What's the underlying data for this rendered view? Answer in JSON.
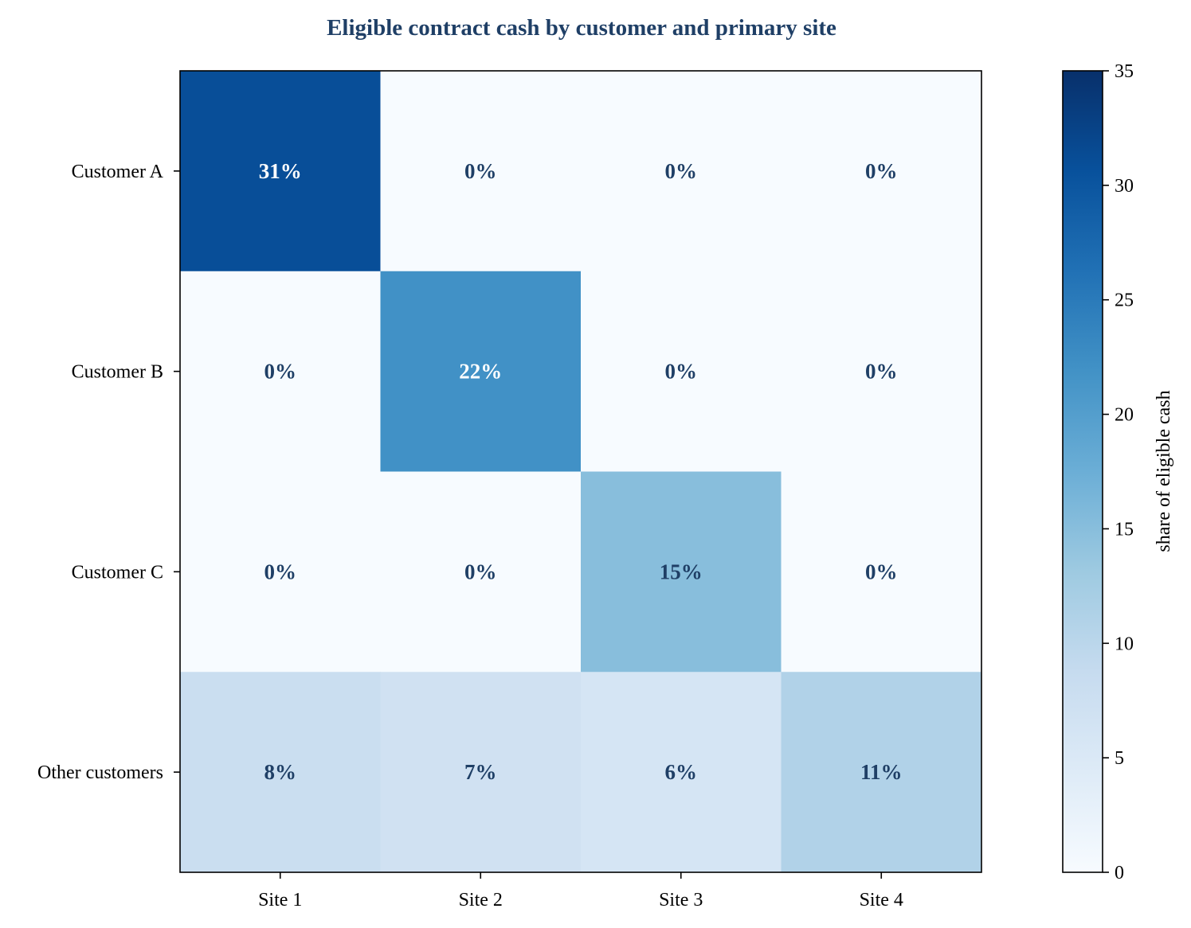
{
  "chart_data": {
    "type": "heatmap",
    "title": "Eligible contract cash by customer and primary site",
    "x_categories": [
      "Site 1",
      "Site 2",
      "Site 3",
      "Site 4"
    ],
    "y_categories": [
      "Customer A",
      "Customer B",
      "Customer C",
      "Other customers"
    ],
    "values": [
      [
        31,
        0,
        0,
        0
      ],
      [
        0,
        22,
        0,
        0
      ],
      [
        0,
        0,
        15,
        0
      ],
      [
        8,
        7,
        6,
        11
      ]
    ],
    "value_labels": [
      [
        "31%",
        "0%",
        "0%",
        "0%"
      ],
      [
        "0%",
        "22%",
        "0%",
        "0%"
      ],
      [
        "0%",
        "0%",
        "15%",
        "0%"
      ],
      [
        "8%",
        "7%",
        "6%",
        "11%"
      ]
    ],
    "colorbar": {
      "label": "share of eligible cash",
      "range": [
        0,
        35
      ],
      "ticks": [
        "0",
        "5",
        "10",
        "15",
        "20",
        "25",
        "30",
        "35"
      ],
      "colormap": "Blues"
    },
    "colors": {
      "title": "#1f3f66",
      "label_dark": "#1f3f66",
      "label_light": "#ffffff"
    }
  }
}
